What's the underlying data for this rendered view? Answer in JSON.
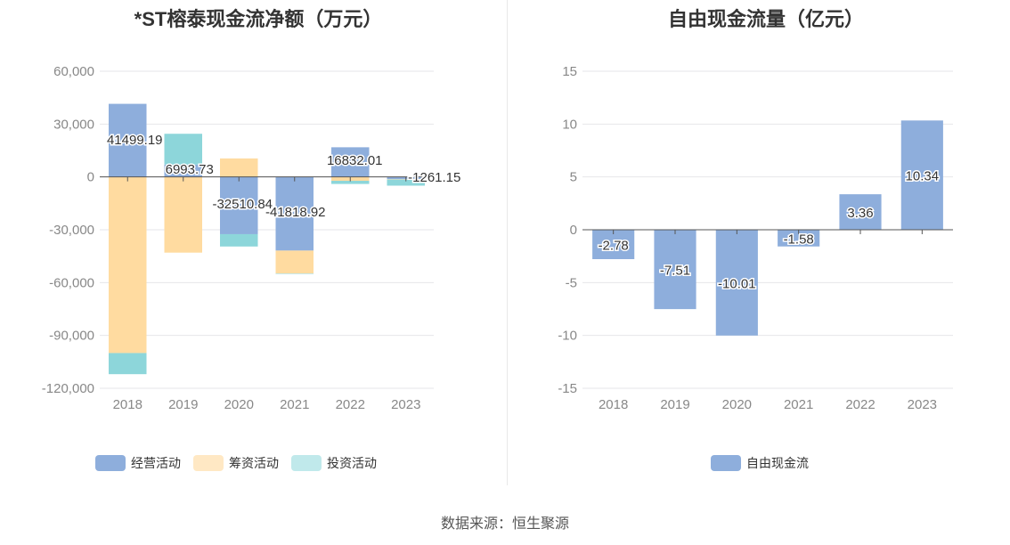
{
  "source": "数据来源：恒生聚源",
  "chart_data": [
    {
      "type": "bar",
      "stacked": true,
      "title": "*ST榕泰现金流净额（万元）",
      "categories": [
        "2018",
        "2019",
        "2020",
        "2021",
        "2022",
        "2023"
      ],
      "ylim": [
        -120000,
        60000
      ],
      "yticks": [
        "60,000",
        "30,000",
        "0",
        "-30,000",
        "-60,000",
        "-90,000",
        "-120,000"
      ],
      "series": [
        {
          "name": "经营活动",
          "color": "#8eaedc",
          "values": [
            41499.19,
            6993.73,
            -32510.84,
            -41818.92,
            16832.01,
            -1261.15
          ]
        },
        {
          "name": "筹资活动",
          "color": "#ffdba0",
          "values": [
            -100000,
            -43000,
            10500,
            -13000,
            -2200,
            -200
          ]
        },
        {
          "name": "投资活动",
          "color": "#8dd6da",
          "values": [
            -12000,
            17500,
            -7000,
            -200,
            -1800,
            -3500
          ]
        }
      ],
      "data_labels": [
        "41499.19",
        "6993.73",
        "-32510.84",
        "-41818.92",
        "16832.01",
        "-1261.15"
      ],
      "grid": true,
      "legend": "bottom"
    },
    {
      "type": "bar",
      "title": "自由现金流量（亿元）",
      "categories": [
        "2018",
        "2019",
        "2020",
        "2021",
        "2022",
        "2023"
      ],
      "ylim": [
        -15,
        15
      ],
      "yticks": [
        "15",
        "10",
        "5",
        "0",
        "-5",
        "-10",
        "-15"
      ],
      "series": [
        {
          "name": "自由现金流",
          "color": "#8eaedc",
          "values": [
            -2.78,
            -7.51,
            -10.01,
            -1.58,
            3.36,
            10.34
          ]
        }
      ],
      "data_labels": [
        "-2.78",
        "-7.51",
        "-10.01",
        "-1.58",
        "3.36",
        "10.34"
      ],
      "grid": true,
      "legend": "bottom"
    }
  ]
}
